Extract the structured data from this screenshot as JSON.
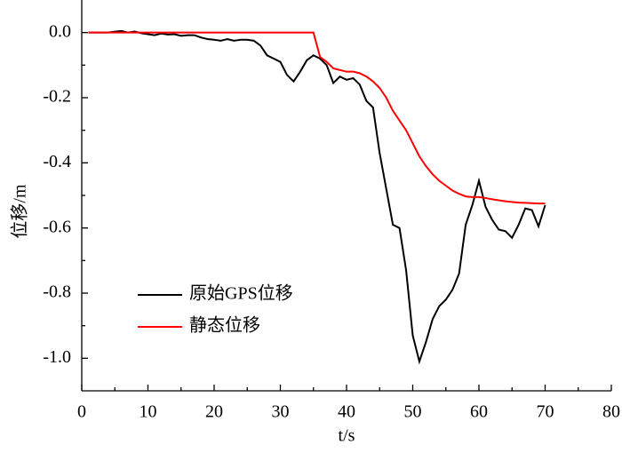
{
  "chart_data": {
    "type": "line",
    "x_label": "t/s",
    "y_label": "位移/m",
    "x": [
      1,
      2,
      3,
      4,
      5,
      6,
      7,
      8,
      9,
      10,
      11,
      12,
      13,
      14,
      15,
      16,
      17,
      18,
      19,
      20,
      21,
      22,
      23,
      24,
      25,
      26,
      27,
      28,
      29,
      30,
      31,
      32,
      33,
      34,
      35,
      36,
      37,
      38,
      39,
      40,
      41,
      42,
      43,
      44,
      45,
      46,
      47,
      48,
      49,
      50,
      51,
      52,
      53,
      54,
      55,
      56,
      57,
      58,
      59,
      60,
      61,
      62,
      63,
      64,
      65,
      66,
      67,
      68,
      69,
      70
    ],
    "series": [
      {
        "name": "原始GPS位移",
        "color": "#000000",
        "values": [
          0,
          0,
          0,
          0,
          0.003,
          0.005,
          0,
          0.003,
          -0.002,
          -0.005,
          -0.008,
          -0.003,
          -0.006,
          -0.005,
          -0.01,
          -0.008,
          -0.008,
          -0.015,
          -0.02,
          -0.022,
          -0.025,
          -0.02,
          -0.025,
          -0.022,
          -0.022,
          -0.025,
          -0.04,
          -0.07,
          -0.08,
          -0.09,
          -0.13,
          -0.15,
          -0.12,
          -0.085,
          -0.07,
          -0.08,
          -0.1,
          -0.155,
          -0.135,
          -0.145,
          -0.14,
          -0.16,
          -0.21,
          -0.23,
          -0.37,
          -0.48,
          -0.59,
          -0.6,
          -0.73,
          -0.93,
          -1.01,
          -0.95,
          -0.88,
          -0.84,
          -0.82,
          -0.79,
          -0.74,
          -0.59,
          -0.53,
          -0.455,
          -0.535,
          -0.575,
          -0.605,
          -0.61,
          -0.63,
          -0.59,
          -0.54,
          -0.545,
          -0.595,
          -0.53
        ]
      },
      {
        "name": "静态位移",
        "color": "#ff0000",
        "values": [
          0,
          0,
          0,
          0,
          0,
          0,
          0,
          0,
          0,
          0,
          0,
          0,
          0,
          0,
          0,
          0,
          0,
          0,
          0,
          0,
          0,
          0,
          0,
          0,
          0,
          0,
          0,
          0,
          0,
          0,
          0,
          0,
          0,
          0,
          0,
          -0.075,
          -0.09,
          -0.11,
          -0.115,
          -0.12,
          -0.12,
          -0.125,
          -0.135,
          -0.15,
          -0.17,
          -0.2,
          -0.24,
          -0.27,
          -0.3,
          -0.34,
          -0.38,
          -0.41,
          -0.435,
          -0.455,
          -0.47,
          -0.485,
          -0.495,
          -0.503,
          -0.505,
          -0.505,
          -0.508,
          -0.512,
          -0.515,
          -0.518,
          -0.52,
          -0.522,
          -0.523,
          -0.524,
          -0.525,
          -0.525
        ]
      }
    ],
    "xlim": [
      0,
      80
    ],
    "xticks": [
      0,
      10,
      20,
      30,
      40,
      50,
      60,
      70,
      80
    ],
    "ylim": [
      -1.1,
      0.1
    ],
    "yticks": [
      {
        "value": 0,
        "label": "0.0"
      },
      -0.2,
      -0.4,
      -0.6,
      -0.8,
      {
        "value": -1,
        "label": "-1.0"
      }
    ]
  }
}
